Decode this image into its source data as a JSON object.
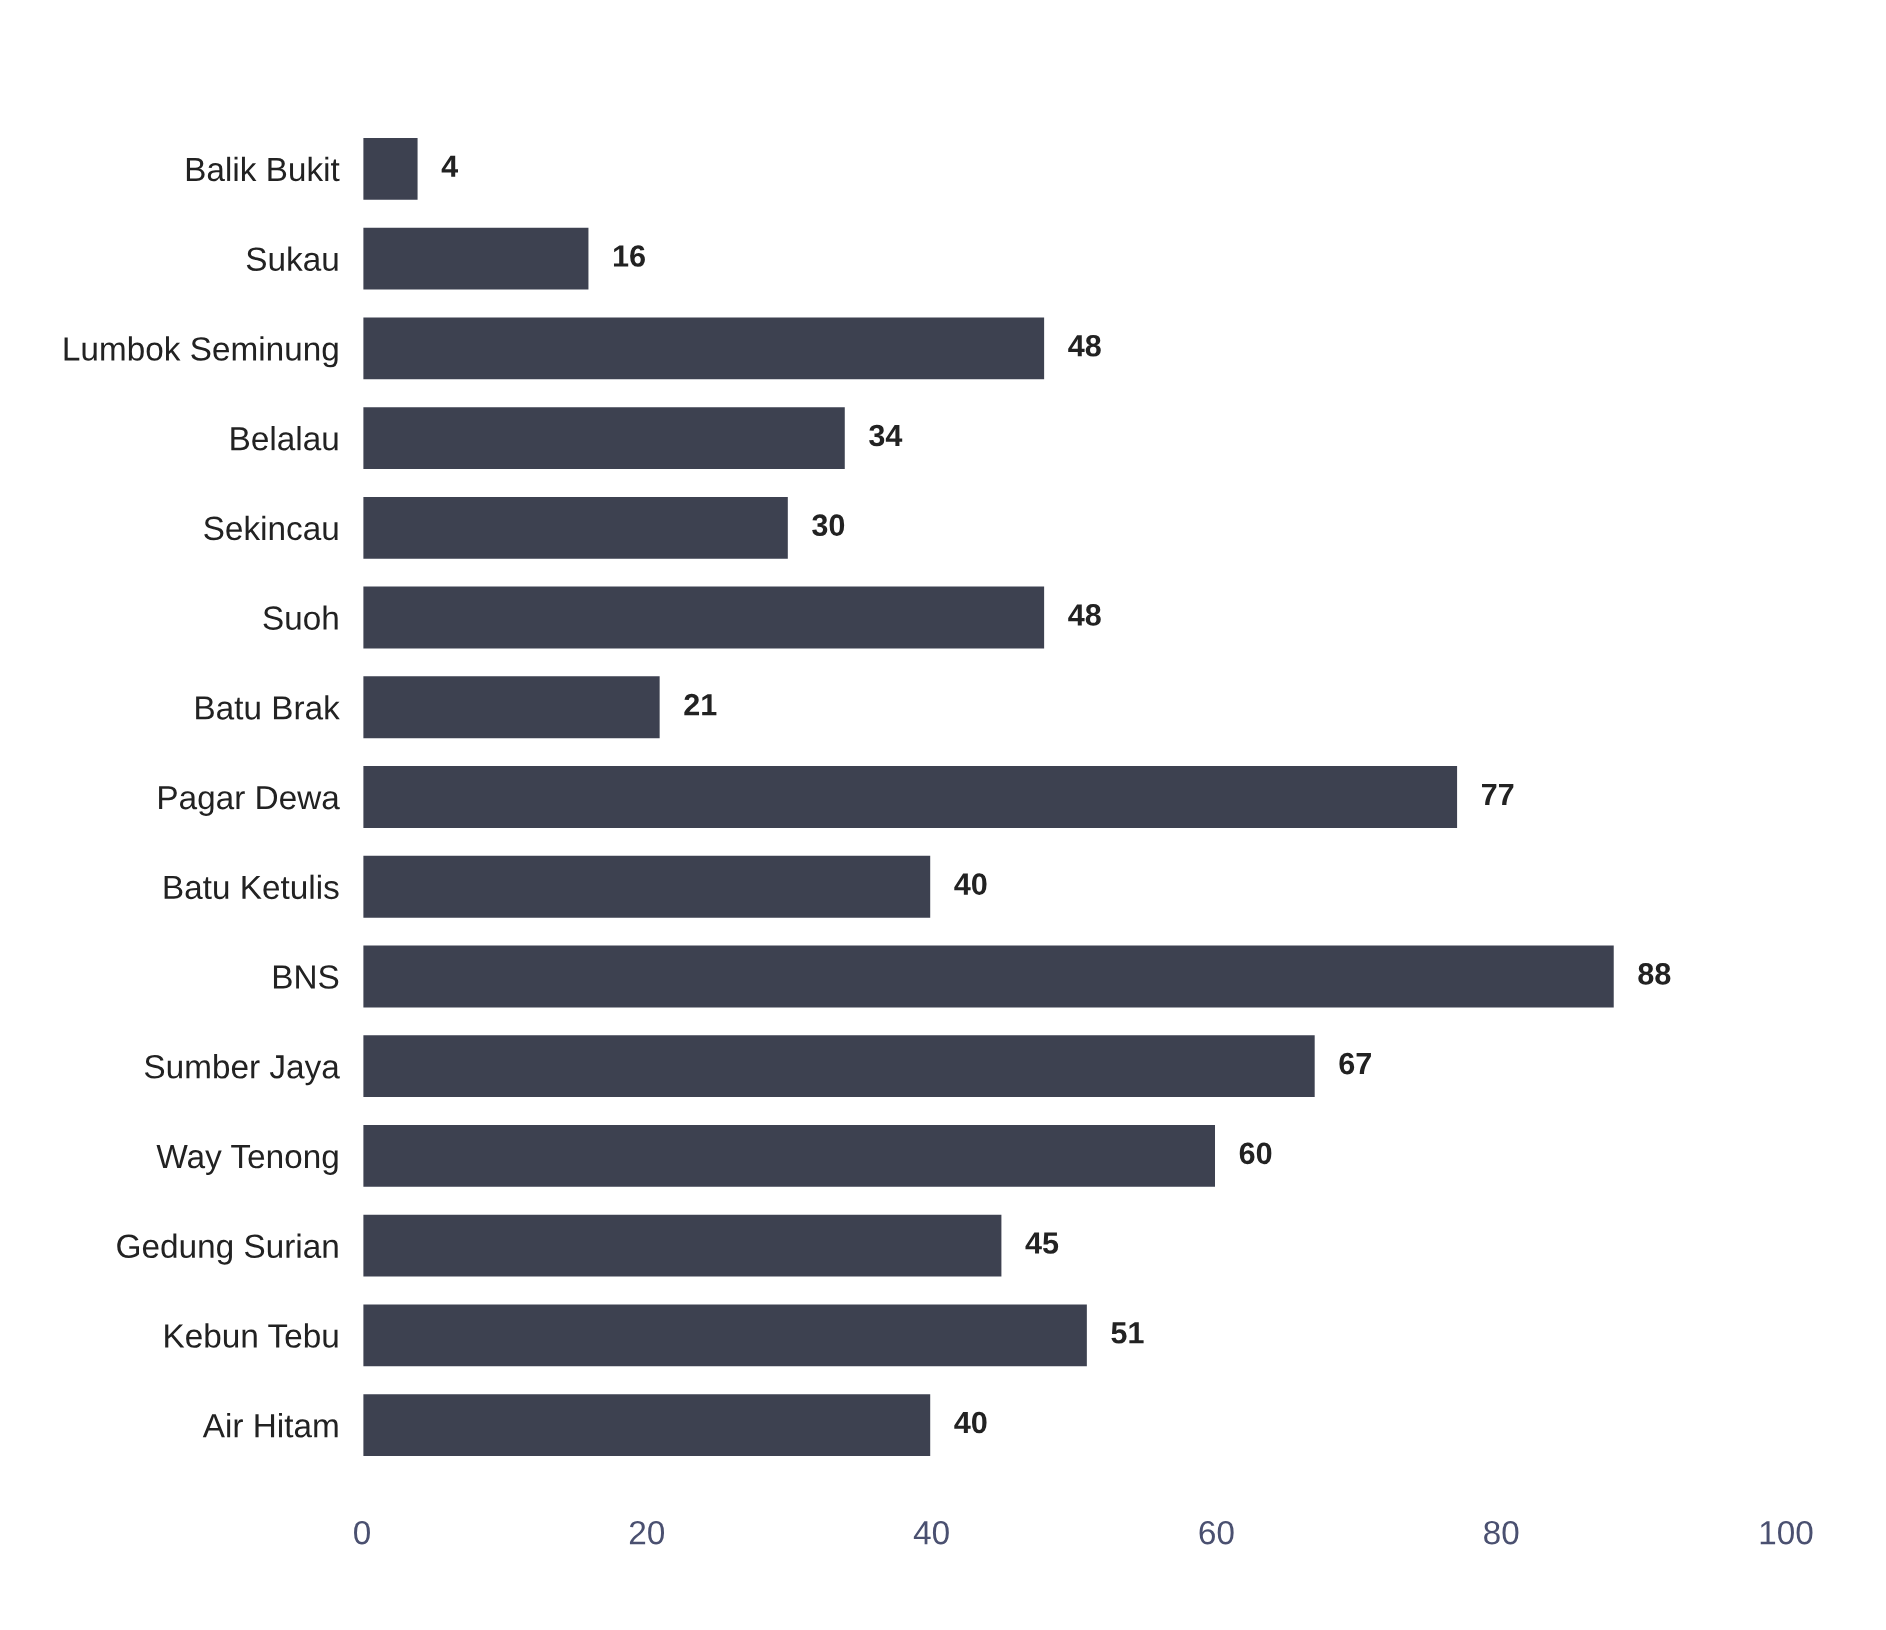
{
  "chart_data": {
    "type": "bar",
    "orientation": "horizontal",
    "categories": [
      "Balik Bukit",
      "Sukau",
      "Lumbok Seminung",
      "Belalau",
      "Sekincau",
      "Suoh",
      "Batu Brak",
      "Pagar Dewa",
      "Batu Ketulis",
      "BNS",
      "Sumber Jaya",
      "Way Tenong",
      "Gedung Surian",
      "Kebun Tebu",
      "Air Hitam"
    ],
    "values": [
      4,
      16,
      48,
      34,
      30,
      48,
      21,
      77,
      40,
      88,
      67,
      60,
      45,
      51,
      40
    ],
    "color": "#3d4150",
    "xlim": [
      0,
      100
    ],
    "xticks": [
      0,
      20,
      40,
      60,
      80,
      100
    ],
    "data_labels": true,
    "grid": false,
    "legend": false
  }
}
